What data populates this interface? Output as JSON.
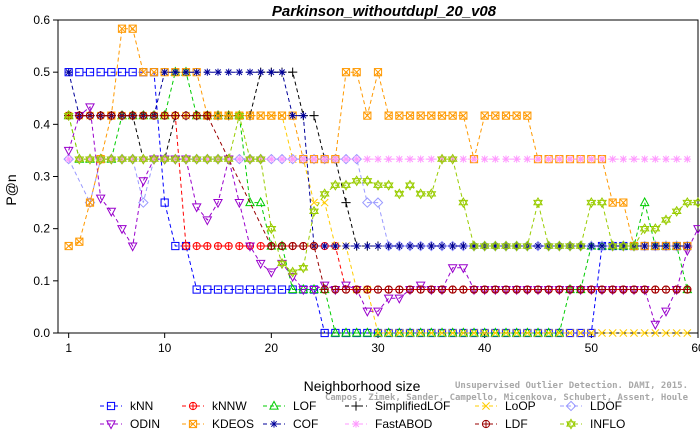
{
  "chart_data": {
    "type": "line",
    "title": "Parkinson_withoutdupl_20_v08",
    "xlabel": "Neighborhood size",
    "ylabel": "P@n",
    "xlim": [
      0,
      60
    ],
    "ylim": [
      0,
      0.6
    ],
    "xticks": [
      1,
      10,
      20,
      30,
      40,
      50,
      60
    ],
    "yticks": [
      0.0,
      0.1,
      0.2,
      0.3,
      0.4,
      0.5,
      0.6
    ],
    "legend_position": "bottom",
    "series": [
      {
        "name": "kNN",
        "color": "#0000ff",
        "marker": "square",
        "points": [
          [
            1,
            0.5
          ],
          [
            9,
            0.5
          ],
          [
            10,
            0.25
          ],
          [
            11,
            0.1667
          ],
          [
            12,
            0.1667
          ],
          [
            13,
            0.0833
          ],
          [
            23,
            0.0833
          ],
          [
            24,
            0.0833
          ],
          [
            25,
            0.0
          ],
          [
            50,
            0.0
          ],
          [
            51,
            0.1667
          ],
          [
            59,
            0.1667
          ]
        ]
      },
      {
        "name": "kNNW",
        "color": "#ff0000",
        "marker": "circle-plus",
        "points": [
          [
            1,
            0.4167
          ],
          [
            11,
            0.4167
          ],
          [
            12,
            0.1667
          ],
          [
            26,
            0.1667
          ],
          [
            27,
            0.0833
          ],
          [
            59,
            0.0833
          ]
        ]
      },
      {
        "name": "LOF",
        "color": "#00cc00",
        "marker": "triangle-up",
        "points": [
          [
            1,
            0.4167
          ],
          [
            2,
            0.3333
          ],
          [
            5,
            0.3333
          ],
          [
            6,
            0.4167
          ],
          [
            10,
            0.4167
          ],
          [
            11,
            0.5
          ],
          [
            12,
            0.5
          ],
          [
            13,
            0.4167
          ],
          [
            17,
            0.4167
          ],
          [
            18,
            0.25
          ],
          [
            19,
            0.25
          ],
          [
            20,
            0.1667
          ],
          [
            21,
            0.1667
          ],
          [
            22,
            0.0833
          ],
          [
            25,
            0.0833
          ],
          [
            26,
            0.0
          ],
          [
            47,
            0.0
          ],
          [
            48,
            0.0833
          ],
          [
            49,
            0.0833
          ],
          [
            50,
            0.1667
          ],
          [
            54,
            0.1667
          ],
          [
            55,
            0.25
          ],
          [
            56,
            0.1667
          ],
          [
            58,
            0.1667
          ],
          [
            59,
            0.0833
          ]
        ]
      },
      {
        "name": "SimplifiedLOF",
        "color": "#000000",
        "marker": "plus",
        "points": [
          [
            1,
            0.4167
          ],
          [
            7,
            0.4167
          ],
          [
            8,
            0.3333
          ],
          [
            10,
            0.3333
          ],
          [
            11,
            0.4167
          ],
          [
            18,
            0.4167
          ],
          [
            19,
            0.5
          ],
          [
            22,
            0.5
          ],
          [
            23,
            0.4167
          ],
          [
            24,
            0.4167
          ],
          [
            25,
            0.3333
          ],
          [
            26,
            0.3333
          ],
          [
            27,
            0.25
          ],
          [
            28,
            0.1667
          ],
          [
            59,
            0.1667
          ]
        ]
      },
      {
        "name": "LoOP",
        "color": "#ffcc00",
        "marker": "x",
        "points": [
          [
            1,
            0.4167
          ],
          [
            21,
            0.4167
          ],
          [
            22,
            0.3333
          ],
          [
            23,
            0.3333
          ],
          [
            24,
            0.25
          ],
          [
            25,
            0.25
          ],
          [
            26,
            0.1667
          ],
          [
            27,
            0.1667
          ],
          [
            28,
            0.0833
          ],
          [
            29,
            0.0833
          ],
          [
            30,
            0.0
          ],
          [
            59,
            0.0
          ]
        ]
      },
      {
        "name": "LDOF",
        "color": "#9999ff",
        "marker": "diamond",
        "points": [
          [
            1,
            0.3333
          ],
          [
            3,
            0.25
          ],
          [
            4,
            0.3333
          ],
          [
            7,
            0.3333
          ],
          [
            8,
            0.25
          ],
          [
            9,
            0.3333
          ],
          [
            27,
            0.3333
          ],
          [
            28,
            0.3333
          ],
          [
            29,
            0.25
          ],
          [
            30,
            0.25
          ],
          [
            31,
            0.1667
          ],
          [
            36,
            0.1667
          ],
          [
            37,
            0.1667
          ],
          [
            59,
            0.1667
          ]
        ]
      },
      {
        "name": "ODIN",
        "color": "#9900cc",
        "marker": "triangle-down",
        "points": [
          [
            1,
            0.35
          ],
          [
            2,
            0.4167
          ],
          [
            3,
            0.4333
          ],
          [
            4,
            0.2583
          ],
          [
            5,
            0.2333
          ],
          [
            6,
            0.2
          ],
          [
            7,
            0.1667
          ],
          [
            8,
            0.2917
          ],
          [
            9,
            0.3333
          ],
          [
            12,
            0.3333
          ],
          [
            13,
            0.2417
          ],
          [
            14,
            0.2167
          ],
          [
            15,
            0.25
          ],
          [
            16,
            0.3333
          ],
          [
            17,
            0.25
          ],
          [
            18,
            0.1667
          ],
          [
            19,
            0.1333
          ],
          [
            20,
            0.1167
          ],
          [
            21,
            0.1333
          ],
          [
            22,
            0.1083
          ],
          [
            23,
            0.0833
          ],
          [
            24,
            0.0833
          ],
          [
            25,
            0.0917
          ],
          [
            26,
            0.0833
          ],
          [
            27,
            0.0917
          ],
          [
            28,
            0.0833
          ],
          [
            29,
            0.0417
          ],
          [
            30,
            0.0417
          ],
          [
            31,
            0.0667
          ],
          [
            32,
            0.0667
          ],
          [
            33,
            0.0833
          ],
          [
            34,
            0.0917
          ],
          [
            35,
            0.0833
          ],
          [
            36,
            0.0833
          ],
          [
            37,
            0.125
          ],
          [
            38,
            0.125
          ],
          [
            39,
            0.0833
          ],
          [
            40,
            0.0833
          ],
          [
            45,
            0.0833
          ],
          [
            46,
            0.0833
          ],
          [
            47,
            0.0833
          ],
          [
            48,
            0.0833
          ],
          [
            55,
            0.0833
          ],
          [
            56,
            0.0167
          ],
          [
            57,
            0.0417
          ],
          [
            58,
            0.0833
          ],
          [
            59,
            0.1583
          ],
          [
            60,
            0.2
          ]
        ]
      },
      {
        "name": "KDEOS",
        "color": "#ff9900",
        "marker": "square-x",
        "points": [
          [
            1,
            0.1667
          ],
          [
            2,
            0.175
          ],
          [
            3,
            0.25
          ],
          [
            4,
            0.3333
          ],
          [
            5,
            0.4167
          ],
          [
            6,
            0.5833
          ],
          [
            7,
            0.5833
          ],
          [
            8,
            0.5
          ],
          [
            13,
            0.5
          ],
          [
            14,
            0.4167
          ],
          [
            22,
            0.4167
          ],
          [
            23,
            0.3333
          ],
          [
            26,
            0.3333
          ],
          [
            27,
            0.5
          ],
          [
            28,
            0.5
          ],
          [
            29,
            0.4167
          ],
          [
            30,
            0.5
          ],
          [
            31,
            0.4167
          ],
          [
            38,
            0.4167
          ],
          [
            39,
            0.3333
          ],
          [
            40,
            0.4167
          ],
          [
            44,
            0.4167
          ],
          [
            45,
            0.3333
          ],
          [
            51,
            0.3333
          ],
          [
            52,
            0.25
          ],
          [
            53,
            0.25
          ],
          [
            54,
            0.1667
          ],
          [
            59,
            0.1667
          ]
        ]
      },
      {
        "name": "COF",
        "color": "#000099",
        "marker": "star",
        "points": [
          [
            1,
            0.5
          ],
          [
            2,
            0.4167
          ],
          [
            3,
            0.4167
          ],
          [
            8,
            0.4167
          ],
          [
            9,
            0.4167
          ],
          [
            10,
            0.5
          ],
          [
            21,
            0.5
          ],
          [
            22,
            0.4167
          ],
          [
            23,
            0.4167
          ],
          [
            24,
            0.1667
          ],
          [
            25,
            0.1667
          ],
          [
            26,
            0.1667
          ],
          [
            27,
            0.1667
          ],
          [
            59,
            0.1667
          ]
        ]
      },
      {
        "name": "FastABOD",
        "color": "#ff99ff",
        "marker": "cross-plus",
        "points": [
          [
            1,
            0.3333
          ],
          [
            2,
            0.3333
          ],
          [
            59,
            0.3333
          ]
        ]
      },
      {
        "name": "LDF",
        "color": "#990000",
        "marker": "circle-plus",
        "points": [
          [
            1,
            0.4167
          ],
          [
            2,
            0.4167
          ],
          [
            12,
            0.4167
          ],
          [
            13,
            0.4167
          ],
          [
            14,
            0.4167
          ],
          [
            20,
            0.1667
          ],
          [
            24,
            0.1667
          ],
          [
            25,
            0.0833
          ],
          [
            59,
            0.0833
          ]
        ]
      },
      {
        "name": "INFLO",
        "color": "#99cc00",
        "marker": "star-of-david",
        "points": [
          [
            1,
            0.4167
          ],
          [
            2,
            0.3333
          ],
          [
            16,
            0.3333
          ],
          [
            17,
            0.4167
          ],
          [
            18,
            0.3333
          ],
          [
            19,
            0.3333
          ],
          [
            20,
            0.2
          ],
          [
            21,
            0.1333
          ],
          [
            22,
            0.1167
          ],
          [
            23,
            0.125
          ],
          [
            24,
            0.2333
          ],
          [
            25,
            0.2667
          ],
          [
            26,
            0.2833
          ],
          [
            27,
            0.2833
          ],
          [
            28,
            0.2917
          ],
          [
            29,
            0.2917
          ],
          [
            30,
            0.2833
          ],
          [
            31,
            0.2833
          ],
          [
            32,
            0.2667
          ],
          [
            33,
            0.2833
          ],
          [
            34,
            0.2667
          ],
          [
            35,
            0.2667
          ],
          [
            36,
            0.3333
          ],
          [
            37,
            0.3333
          ],
          [
            38,
            0.25
          ],
          [
            39,
            0.1667
          ],
          [
            44,
            0.1667
          ],
          [
            45,
            0.25
          ],
          [
            46,
            0.1667
          ],
          [
            48,
            0.1667
          ],
          [
            49,
            0.1667
          ],
          [
            50,
            0.25
          ],
          [
            51,
            0.25
          ],
          [
            52,
            0.1667
          ],
          [
            53,
            0.1667
          ],
          [
            54,
            0.1667
          ],
          [
            55,
            0.2
          ],
          [
            56,
            0.2
          ],
          [
            57,
            0.2167
          ],
          [
            58,
            0.2333
          ],
          [
            59,
            0.25
          ],
          [
            60,
            0.25
          ]
        ]
      }
    ]
  },
  "watermark_lines": [
    "Unsupervised Outlier Detection. DAMI, 2015.",
    "Campos, Zimek, Sander, Campello, Micenkova, Schubert, Assent, Houle"
  ]
}
